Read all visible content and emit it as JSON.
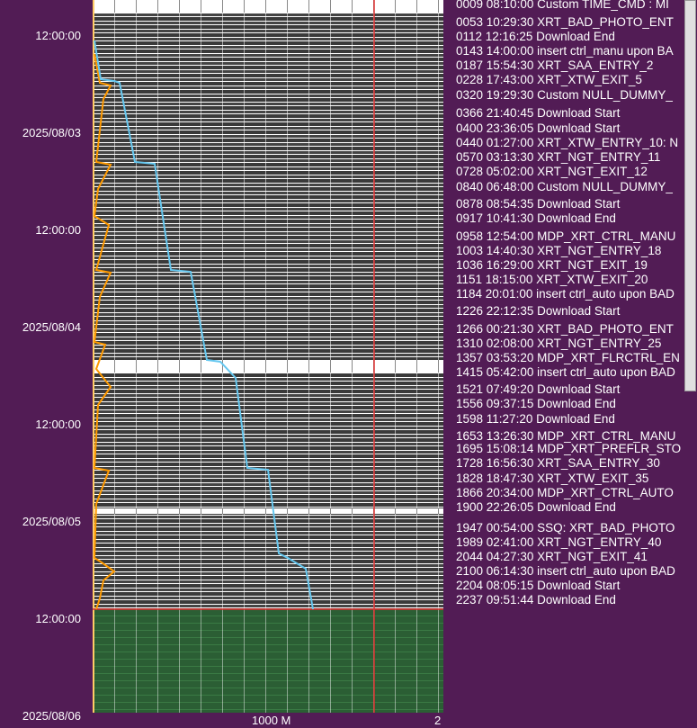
{
  "time_axis": {
    "labels": [
      "12:00:00",
      "2025/08/03",
      "12:00:00",
      "2025/08/04",
      "12:00:00",
      "2025/08/05",
      "12:00:00",
      "2025/08/06"
    ]
  },
  "bottom_axis": {
    "labels": [
      "1000 M",
      "2"
    ]
  },
  "events": [
    "0009 08:10:00 Custom TIME_CMD : MI",
    "0053 10:29:30 XRT_BAD_PHOTO_ENT",
    "0112 12:16:25 Download End",
    "0143 14:00:00 insert ctrl_manu upon BA",
    "0187 15:54:30 XRT_SAA_ENTRY_2",
    "0228 17:43:00 XRT_XTW_EXIT_5",
    "0320 19:29:30 Custom NULL_DUMMY_",
    "0366 21:40:45 Download Start",
    "0400 23:36:05 Download Start",
    "0440 01:27:00 XRT_XTW_ENTRY_10: N",
    "0570 03:13:30 XRT_NGT_ENTRY_11",
    "0728 05:02:00 XRT_NGT_EXIT_12",
    "0840 06:48:00 Custom NULL_DUMMY_",
    "0878 08:54:35 Download Start",
    "0917 10:41:30 Download End",
    "0958 12:54:00 MDP_XRT_CTRL_MANU",
    "1003 14:40:30 XRT_NGT_ENTRY_18",
    "1036 16:29:00 XRT_NGT_EXIT_19",
    "1151 18:15:00 XRT_XTW_EXIT_20",
    "1184 20:01:00 insert ctrl_auto upon BAD",
    "1226 22:12:35 Download Start",
    "1266 00:21:30 XRT_BAD_PHOTO_ENT",
    "1310 02:08:00 XRT_NGT_ENTRY_25",
    "1357 03:53:20 MDP_XRT_FLRCTRL_EN",
    "1415 05:42:00 insert ctrl_auto upon BAD",
    "1521 07:49:20 Download Start",
    "1556 09:37:15 Download End",
    "1598 11:27:20 Download End",
    "1653 13:26:30 MDP_XRT_CTRL_MANU",
    "1695 15:08:14 MDP_XRT_PREFLR_STO",
    "1728 16:56:30 XRT_SAA_ENTRY_30",
    "1828 18:47:30 XRT_XTW_EXIT_35",
    "1866 20:34:00 MDP_XRT_CTRL_AUTO",
    "1900 22:26:05 Download End",
    "1947 00:54:00 SSQ: XRT_BAD_PHOTO",
    "1989 02:41:00 XRT_NGT_ENTRY_40",
    "2044 04:27:30 XRT_NGT_EXIT_41",
    "2100 06:14:30 insert ctrl_auto upon BAD",
    "2204 08:05:15 Download Start",
    "2237 09:51:44 Download End"
  ]
}
